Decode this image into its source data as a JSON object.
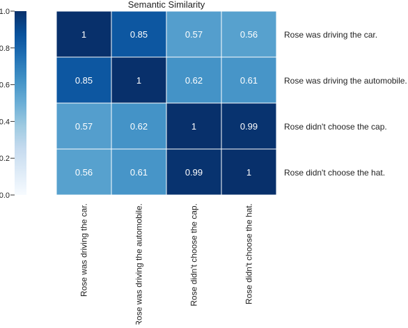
{
  "chart_data": {
    "type": "heatmap",
    "title": "Semantic Similarity",
    "row_labels": [
      "Rose was driving the car.",
      "Rose was driving the automobile.",
      "Rose didn't choose the cap.",
      "Rose didn't choose the hat."
    ],
    "col_labels": [
      "Rose was driving the car.",
      "Rose was driving the automobile.",
      "Rose didn't choose the cap.",
      "Rose didn't choose the hat."
    ],
    "values": [
      [
        1,
        0.85,
        0.57,
        0.56
      ],
      [
        0.85,
        1,
        0.62,
        0.61
      ],
      [
        0.57,
        0.62,
        1,
        0.99
      ],
      [
        0.56,
        0.61,
        0.99,
        1
      ]
    ],
    "cell_text": [
      [
        "1",
        "0.85",
        "0.57",
        "0.56"
      ],
      [
        "0.85",
        "1",
        "0.62",
        "0.61"
      ],
      [
        "0.57",
        "0.62",
        "1",
        "0.99"
      ],
      [
        "0.56",
        "0.61",
        "0.99",
        "1"
      ]
    ],
    "colormap": "Blues",
    "vmin": 0,
    "vmax": 1,
    "row_labels_position": "right",
    "col_labels_position": "bottom",
    "colorbar": {
      "position": "left",
      "ticks": [
        0.0,
        0.2,
        0.4,
        0.6,
        0.8,
        1.0
      ],
      "tick_labels": [
        "0.0",
        "0.2",
        "0.4",
        "0.6",
        "0.8",
        "1.0"
      ]
    }
  }
}
